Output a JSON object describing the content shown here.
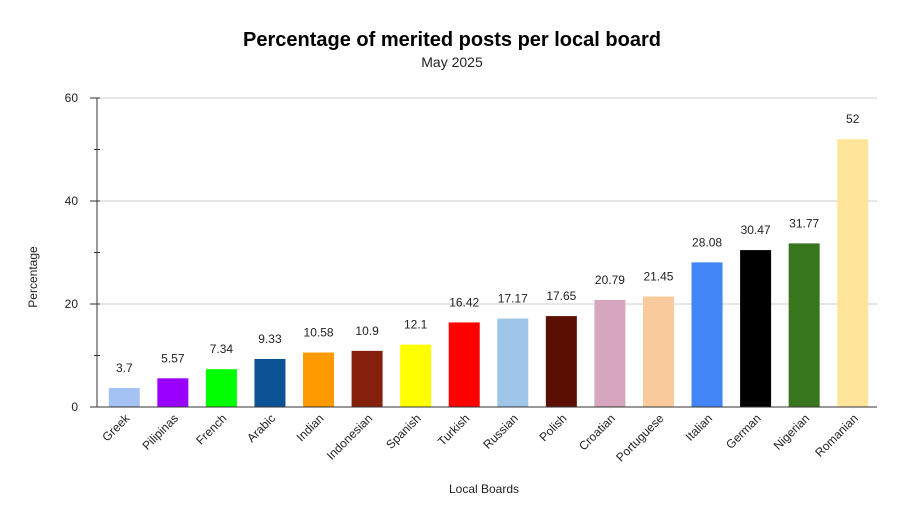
{
  "chart_data": {
    "type": "bar",
    "title": "Percentage of merited posts per local board",
    "subtitle": "May 2025",
    "xlabel": "Local Boards",
    "ylabel": "Percentage",
    "ylim": [
      0,
      60
    ],
    "yticks": [
      0,
      20,
      40,
      60
    ],
    "grid": true,
    "legend": "none",
    "categories": [
      "Greek",
      "Pilipinas",
      "French",
      "Arabic",
      "Indian",
      "Indonesian",
      "Spanish",
      "Turkish",
      "Russian",
      "Polish",
      "Croatian",
      "Portuguese",
      "Italian",
      "German",
      "Nigerian",
      "Romanian"
    ],
    "values": [
      3.7,
      5.57,
      7.34,
      9.33,
      10.58,
      10.9,
      12.1,
      16.42,
      17.17,
      17.65,
      20.79,
      21.45,
      28.08,
      30.47,
      31.77,
      52
    ],
    "value_labels": [
      "3.7",
      "5.57",
      "7.34",
      "9.33",
      "10.58",
      "10.9",
      "12.1",
      "16.42",
      "17.17",
      "17.65",
      "20.79",
      "21.45",
      "28.08",
      "30.47",
      "31.77",
      "52"
    ],
    "colors": [
      "#a4c2f4",
      "#9900ff",
      "#00ff00",
      "#0b5394",
      "#ff9900",
      "#85200c",
      "#ffff00",
      "#ff0000",
      "#9fc5e8",
      "#5b0f00",
      "#d5a6bd",
      "#f9cb9c",
      "#4285f4",
      "#000000",
      "#38761d",
      "#ffe599"
    ]
  }
}
